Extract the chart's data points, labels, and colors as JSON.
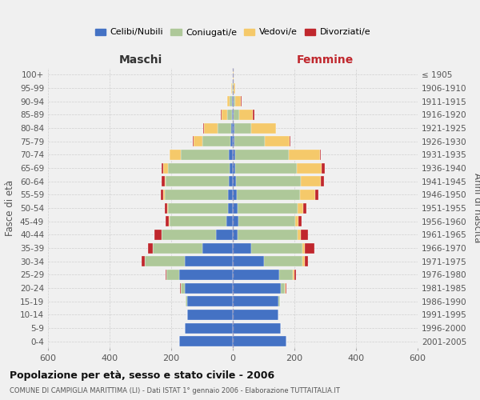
{
  "age_groups": [
    "0-4",
    "5-9",
    "10-14",
    "15-19",
    "20-24",
    "25-29",
    "30-34",
    "35-39",
    "40-44",
    "45-49",
    "50-54",
    "55-59",
    "60-64",
    "65-69",
    "70-74",
    "75-79",
    "80-84",
    "85-89",
    "90-94",
    "95-99",
    "100+"
  ],
  "birth_years": [
    "2001-2005",
    "1996-2000",
    "1991-1995",
    "1986-1990",
    "1981-1985",
    "1976-1980",
    "1971-1975",
    "1966-1970",
    "1961-1965",
    "1956-1960",
    "1951-1955",
    "1946-1950",
    "1941-1945",
    "1936-1940",
    "1931-1935",
    "1926-1930",
    "1921-1925",
    "1916-1920",
    "1911-1915",
    "1906-1910",
    "≤ 1905"
  ],
  "male": {
    "celibi": [
      175,
      155,
      148,
      148,
      155,
      175,
      155,
      100,
      55,
      20,
      15,
      15,
      12,
      10,
      14,
      8,
      4,
      2,
      2,
      0,
      0
    ],
    "coniugati": [
      0,
      0,
      0,
      5,
      15,
      40,
      130,
      160,
      175,
      185,
      195,
      205,
      205,
      200,
      155,
      90,
      45,
      15,
      8,
      2,
      0
    ],
    "vedovi": [
      0,
      0,
      0,
      0,
      0,
      0,
      0,
      0,
      0,
      2,
      2,
      5,
      5,
      15,
      35,
      30,
      45,
      20,
      8,
      2,
      0
    ],
    "divorziati": [
      0,
      0,
      0,
      0,
      2,
      2,
      10,
      15,
      25,
      10,
      8,
      10,
      10,
      5,
      2,
      2,
      2,
      2,
      0,
      0,
      0
    ]
  },
  "female": {
    "nubili": [
      175,
      155,
      148,
      148,
      155,
      150,
      100,
      60,
      15,
      18,
      15,
      12,
      10,
      8,
      8,
      5,
      4,
      2,
      2,
      0,
      0
    ],
    "coniugate": [
      0,
      0,
      0,
      5,
      15,
      45,
      125,
      165,
      195,
      185,
      195,
      205,
      210,
      200,
      175,
      100,
      55,
      18,
      5,
      2,
      0
    ],
    "vedove": [
      0,
      0,
      0,
      0,
      2,
      5,
      10,
      10,
      10,
      10,
      18,
      50,
      65,
      80,
      100,
      80,
      80,
      45,
      20,
      5,
      2
    ],
    "divorziate": [
      0,
      0,
      0,
      0,
      2,
      5,
      10,
      30,
      25,
      10,
      10,
      10,
      10,
      10,
      2,
      2,
      2,
      5,
      2,
      2,
      0
    ]
  },
  "colors": {
    "celibi": "#4472c4",
    "coniugati": "#aec899",
    "vedovi": "#f5c96a",
    "divorziati": "#c0272d"
  },
  "title": "Popolazione per età, sesso e stato civile - 2006",
  "subtitle": "COMUNE DI CAMPIGLIA MARITTIMA (LI) - Dati ISTAT 1° gennaio 2006 - Elaborazione TUTTAITALIA.IT",
  "xlabel_left": "Maschi",
  "xlabel_right": "Femmine",
  "ylabel_left": "Fasce di età",
  "ylabel_right": "Anni di nascita",
  "xlim": 600,
  "background_color": "#f0f0f0",
  "grid_color": "#cccccc",
  "legend_labels": [
    "Celibi/Nubili",
    "Coniugati/e",
    "Vedovi/e",
    "Divorziati/e"
  ]
}
